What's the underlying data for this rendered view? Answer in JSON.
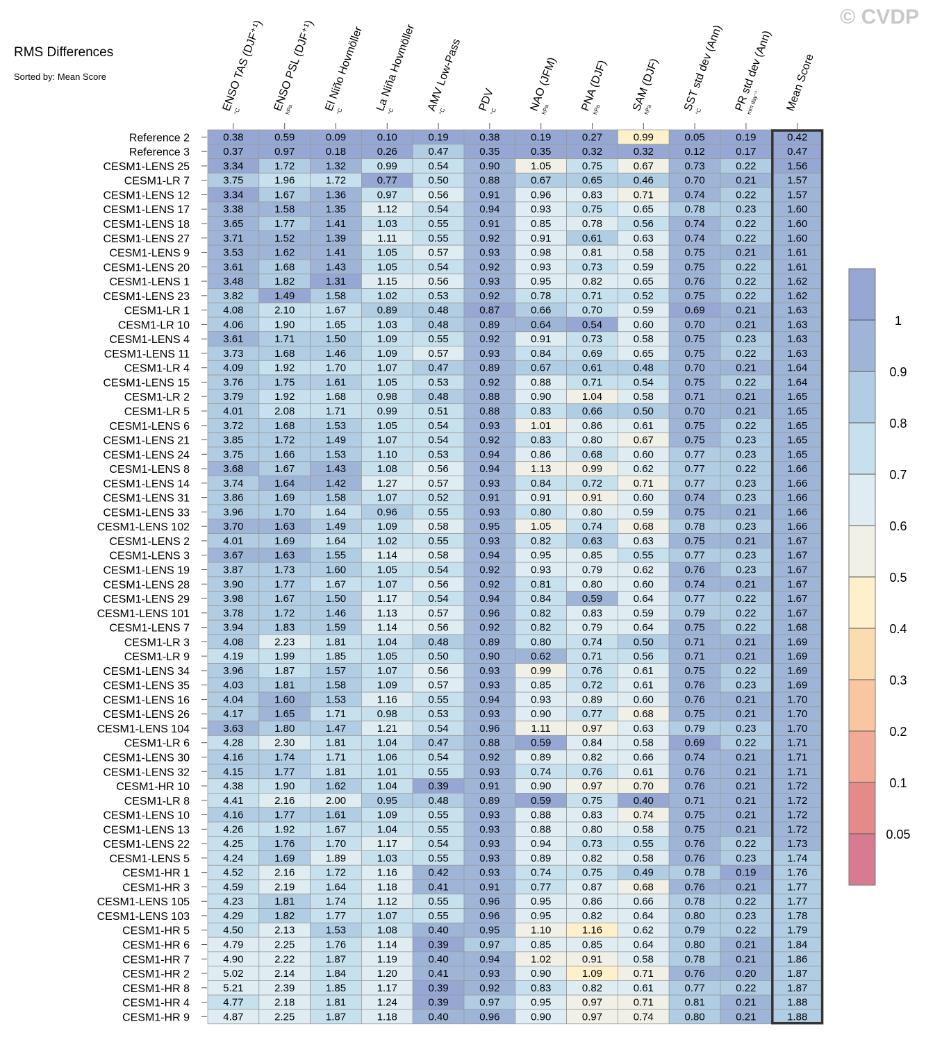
{
  "watermark": "© CVDP",
  "chart_data": {
    "type": "heatmap",
    "title": "RMS Differences",
    "subtitle": "Sorted by: Mean Score",
    "columns": [
      {
        "name": "ENSO TAS (DJF⁺¹)",
        "unit": "°C"
      },
      {
        "name": "ENSO PSL (DJF⁺¹)",
        "unit": "hPa"
      },
      {
        "name": "El Niño Hovmöller",
        "unit": "°C"
      },
      {
        "name": "La Niña Hovmöller",
        "unit": "°C"
      },
      {
        "name": "AMV Low-Pass",
        "unit": "°C"
      },
      {
        "name": "PDV",
        "unit": "°C"
      },
      {
        "name": "NAO (JFM)",
        "unit": "hPa"
      },
      {
        "name": "PNA (DJF)",
        "unit": "hPa"
      },
      {
        "name": "SAM (DJF)",
        "unit": "hPa"
      },
      {
        "name": "SST std dev (Ann)",
        "unit": "°C"
      },
      {
        "name": "PR std dev (Ann)",
        "unit": "mm day⁻¹"
      },
      {
        "name": "Mean Score",
        "unit": ""
      }
    ],
    "rows": [
      {
        "label": "Reference 2",
        "values": [
          0.38,
          0.59,
          0.09,
          0.1,
          0.19,
          0.38,
          0.19,
          0.27,
          0.99,
          0.05,
          0.19,
          0.42
        ]
      },
      {
        "label": "Reference 3",
        "values": [
          0.37,
          0.97,
          0.18,
          0.26,
          0.47,
          0.35,
          0.35,
          0.32,
          0.32,
          0.12,
          0.17,
          0.47
        ]
      },
      {
        "label": "CESM1-LENS 25",
        "values": [
          3.34,
          1.72,
          1.32,
          0.99,
          0.54,
          0.9,
          1.05,
          0.75,
          0.67,
          0.73,
          0.22,
          1.56
        ]
      },
      {
        "label": "CESM1-LR 7",
        "values": [
          3.75,
          1.96,
          1.72,
          0.77,
          0.5,
          0.88,
          0.67,
          0.65,
          0.46,
          0.7,
          0.21,
          1.57
        ]
      },
      {
        "label": "CESM1-LENS 12",
        "values": [
          3.34,
          1.67,
          1.36,
          0.97,
          0.56,
          0.91,
          0.96,
          0.83,
          0.71,
          0.74,
          0.22,
          1.57
        ]
      },
      {
        "label": "CESM1-LENS 17",
        "values": [
          3.38,
          1.58,
          1.35,
          1.12,
          0.54,
          0.94,
          0.93,
          0.75,
          0.65,
          0.78,
          0.23,
          1.6
        ]
      },
      {
        "label": "CESM1-LENS 18",
        "values": [
          3.65,
          1.77,
          1.41,
          1.03,
          0.55,
          0.91,
          0.85,
          0.78,
          0.56,
          0.74,
          0.22,
          1.6
        ]
      },
      {
        "label": "CESM1-LENS 27",
        "values": [
          3.71,
          1.52,
          1.39,
          1.11,
          0.55,
          0.92,
          0.91,
          0.61,
          0.63,
          0.74,
          0.22,
          1.6
        ]
      },
      {
        "label": "CESM1-LENS 9",
        "values": [
          3.53,
          1.62,
          1.41,
          1.05,
          0.57,
          0.93,
          0.98,
          0.81,
          0.58,
          0.75,
          0.21,
          1.61
        ]
      },
      {
        "label": "CESM1-LENS 20",
        "values": [
          3.61,
          1.68,
          1.43,
          1.05,
          0.54,
          0.92,
          0.93,
          0.73,
          0.59,
          0.75,
          0.22,
          1.61
        ]
      },
      {
        "label": "CESM1-LENS 1",
        "values": [
          3.48,
          1.82,
          1.31,
          1.15,
          0.56,
          0.93,
          0.95,
          0.82,
          0.65,
          0.76,
          0.22,
          1.62
        ]
      },
      {
        "label": "CESM1-LENS 23",
        "values": [
          3.82,
          1.49,
          1.58,
          1.02,
          0.53,
          0.92,
          0.78,
          0.71,
          0.52,
          0.75,
          0.22,
          1.62
        ]
      },
      {
        "label": "CESM1-LR 1",
        "values": [
          4.08,
          2.1,
          1.67,
          0.89,
          0.48,
          0.87,
          0.66,
          0.7,
          0.59,
          0.69,
          0.21,
          1.63
        ]
      },
      {
        "label": "CESM1-LR 10",
        "values": [
          4.06,
          1.9,
          1.65,
          1.03,
          0.48,
          0.89,
          0.64,
          0.54,
          0.6,
          0.7,
          0.21,
          1.63
        ]
      },
      {
        "label": "CESM1-LENS 4",
        "values": [
          3.61,
          1.71,
          1.5,
          1.09,
          0.55,
          0.92,
          0.91,
          0.73,
          0.58,
          0.75,
          0.23,
          1.63
        ]
      },
      {
        "label": "CESM1-LENS 11",
        "values": [
          3.73,
          1.68,
          1.46,
          1.09,
          0.57,
          0.93,
          0.84,
          0.69,
          0.65,
          0.75,
          0.22,
          1.63
        ]
      },
      {
        "label": "CESM1-LR 4",
        "values": [
          4.09,
          1.92,
          1.7,
          1.07,
          0.47,
          0.89,
          0.67,
          0.61,
          0.48,
          0.7,
          0.21,
          1.64
        ]
      },
      {
        "label": "CESM1-LENS 15",
        "values": [
          3.76,
          1.75,
          1.61,
          1.05,
          0.53,
          0.92,
          0.88,
          0.71,
          0.54,
          0.75,
          0.22,
          1.64
        ]
      },
      {
        "label": "CESM1-LR 2",
        "values": [
          3.79,
          1.92,
          1.68,
          0.98,
          0.48,
          0.88,
          0.9,
          1.04,
          0.58,
          0.71,
          0.21,
          1.65
        ]
      },
      {
        "label": "CESM1-LR 5",
        "values": [
          4.01,
          2.08,
          1.71,
          0.99,
          0.51,
          0.88,
          0.83,
          0.66,
          0.5,
          0.7,
          0.21,
          1.65
        ]
      },
      {
        "label": "CESM1-LENS 6",
        "values": [
          3.72,
          1.68,
          1.53,
          1.05,
          0.54,
          0.93,
          1.01,
          0.86,
          0.61,
          0.75,
          0.22,
          1.65
        ]
      },
      {
        "label": "CESM1-LENS 21",
        "values": [
          3.85,
          1.72,
          1.49,
          1.07,
          0.54,
          0.92,
          0.83,
          0.8,
          0.67,
          0.75,
          0.23,
          1.65
        ]
      },
      {
        "label": "CESM1-LENS 24",
        "values": [
          3.75,
          1.66,
          1.53,
          1.1,
          0.53,
          0.94,
          0.86,
          0.68,
          0.6,
          0.77,
          0.23,
          1.65
        ]
      },
      {
        "label": "CESM1-LENS 8",
        "values": [
          3.68,
          1.67,
          1.43,
          1.08,
          0.56,
          0.94,
          1.13,
          0.99,
          0.62,
          0.77,
          0.22,
          1.66
        ]
      },
      {
        "label": "CESM1-LENS 14",
        "values": [
          3.74,
          1.64,
          1.42,
          1.27,
          0.57,
          0.93,
          0.84,
          0.72,
          0.71,
          0.77,
          0.23,
          1.66
        ]
      },
      {
        "label": "CESM1-LENS 31",
        "values": [
          3.86,
          1.69,
          1.58,
          1.07,
          0.52,
          0.91,
          0.91,
          0.91,
          0.6,
          0.74,
          0.23,
          1.66
        ]
      },
      {
        "label": "CESM1-LENS 33",
        "values": [
          3.96,
          1.7,
          1.64,
          0.96,
          0.55,
          0.93,
          0.8,
          0.8,
          0.59,
          0.75,
          0.21,
          1.66
        ]
      },
      {
        "label": "CESM1-LENS 102",
        "values": [
          3.7,
          1.63,
          1.49,
          1.09,
          0.58,
          0.95,
          1.05,
          0.74,
          0.68,
          0.78,
          0.23,
          1.66
        ]
      },
      {
        "label": "CESM1-LENS 2",
        "values": [
          4.01,
          1.69,
          1.64,
          1.02,
          0.55,
          0.93,
          0.82,
          0.63,
          0.63,
          0.75,
          0.21,
          1.67
        ]
      },
      {
        "label": "CESM1-LENS 3",
        "values": [
          3.67,
          1.63,
          1.55,
          1.14,
          0.58,
          0.94,
          0.95,
          0.85,
          0.55,
          0.77,
          0.23,
          1.67
        ]
      },
      {
        "label": "CESM1-LENS 19",
        "values": [
          3.87,
          1.73,
          1.6,
          1.05,
          0.54,
          0.92,
          0.93,
          0.79,
          0.62,
          0.76,
          0.23,
          1.67
        ]
      },
      {
        "label": "CESM1-LENS 28",
        "values": [
          3.9,
          1.77,
          1.67,
          1.07,
          0.56,
          0.92,
          0.81,
          0.8,
          0.6,
          0.74,
          0.21,
          1.67
        ]
      },
      {
        "label": "CESM1-LENS 29",
        "values": [
          3.98,
          1.67,
          1.5,
          1.17,
          0.54,
          0.94,
          0.84,
          0.59,
          0.64,
          0.77,
          0.22,
          1.67
        ]
      },
      {
        "label": "CESM1-LENS 101",
        "values": [
          3.78,
          1.72,
          1.46,
          1.13,
          0.57,
          0.96,
          0.82,
          0.83,
          0.59,
          0.79,
          0.22,
          1.67
        ]
      },
      {
        "label": "CESM1-LENS 7",
        "values": [
          3.94,
          1.83,
          1.59,
          1.14,
          0.56,
          0.92,
          0.82,
          0.79,
          0.64,
          0.75,
          0.22,
          1.68
        ]
      },
      {
        "label": "CESM1-LR 3",
        "values": [
          4.08,
          2.23,
          1.81,
          1.04,
          0.48,
          0.89,
          0.8,
          0.74,
          0.5,
          0.71,
          0.21,
          1.69
        ]
      },
      {
        "label": "CESM1-LR 9",
        "values": [
          4.19,
          1.99,
          1.85,
          1.05,
          0.5,
          0.9,
          0.62,
          0.71,
          0.56,
          0.71,
          0.21,
          1.69
        ]
      },
      {
        "label": "CESM1-LENS 34",
        "values": [
          3.96,
          1.87,
          1.57,
          1.07,
          0.56,
          0.93,
          0.99,
          0.76,
          0.61,
          0.75,
          0.22,
          1.69
        ]
      },
      {
        "label": "CESM1-LENS 35",
        "values": [
          4.03,
          1.81,
          1.58,
          1.09,
          0.57,
          0.93,
          0.85,
          0.72,
          0.61,
          0.76,
          0.23,
          1.69
        ]
      },
      {
        "label": "CESM1-LENS 16",
        "values": [
          4.04,
          1.6,
          1.53,
          1.16,
          0.55,
          0.94,
          0.93,
          0.89,
          0.6,
          0.76,
          0.21,
          1.7
        ]
      },
      {
        "label": "CESM1-LENS 26",
        "values": [
          4.17,
          1.65,
          1.71,
          0.98,
          0.53,
          0.93,
          0.9,
          0.77,
          0.68,
          0.75,
          0.21,
          1.7
        ]
      },
      {
        "label": "CESM1-LENS 104",
        "values": [
          3.63,
          1.8,
          1.47,
          1.21,
          0.54,
          0.96,
          1.11,
          0.97,
          0.63,
          0.79,
          0.23,
          1.7
        ]
      },
      {
        "label": "CESM1-LR 6",
        "values": [
          4.28,
          2.3,
          1.81,
          1.04,
          0.47,
          0.88,
          0.59,
          0.84,
          0.58,
          0.69,
          0.22,
          1.71
        ]
      },
      {
        "label": "CESM1-LENS 30",
        "values": [
          4.16,
          1.74,
          1.71,
          1.06,
          0.54,
          0.92,
          0.89,
          0.82,
          0.66,
          0.74,
          0.21,
          1.71
        ]
      },
      {
        "label": "CESM1-LENS 32",
        "values": [
          4.15,
          1.77,
          1.81,
          1.01,
          0.55,
          0.93,
          0.74,
          0.76,
          0.61,
          0.76,
          0.21,
          1.71
        ]
      },
      {
        "label": "CESM1-HR 10",
        "values": [
          4.38,
          1.9,
          1.62,
          1.04,
          0.39,
          0.91,
          0.9,
          0.97,
          0.7,
          0.76,
          0.21,
          1.72
        ]
      },
      {
        "label": "CESM1-LR 8",
        "values": [
          4.41,
          2.16,
          2.0,
          0.95,
          0.48,
          0.89,
          0.59,
          0.75,
          0.4,
          0.71,
          0.21,
          1.72
        ]
      },
      {
        "label": "CESM1-LENS 10",
        "values": [
          4.16,
          1.77,
          1.61,
          1.09,
          0.55,
          0.93,
          0.88,
          0.83,
          0.74,
          0.75,
          0.21,
          1.72
        ]
      },
      {
        "label": "CESM1-LENS 13",
        "values": [
          4.26,
          1.92,
          1.67,
          1.04,
          0.55,
          0.93,
          0.88,
          0.8,
          0.58,
          0.75,
          0.21,
          1.72
        ]
      },
      {
        "label": "CESM1-LENS 22",
        "values": [
          4.25,
          1.76,
          1.7,
          1.17,
          0.54,
          0.93,
          0.94,
          0.73,
          0.55,
          0.76,
          0.22,
          1.73
        ]
      },
      {
        "label": "CESM1-LENS 5",
        "values": [
          4.24,
          1.69,
          1.89,
          1.03,
          0.55,
          0.93,
          0.89,
          0.82,
          0.58,
          0.76,
          0.23,
          1.74
        ]
      },
      {
        "label": "CESM1-HR 1",
        "values": [
          4.52,
          2.16,
          1.72,
          1.16,
          0.42,
          0.93,
          0.74,
          0.75,
          0.49,
          0.78,
          0.19,
          1.76
        ]
      },
      {
        "label": "CESM1-HR 3",
        "values": [
          4.59,
          2.19,
          1.64,
          1.18,
          0.41,
          0.91,
          0.77,
          0.87,
          0.68,
          0.76,
          0.21,
          1.77
        ]
      },
      {
        "label": "CESM1-LENS 105",
        "values": [
          4.23,
          1.81,
          1.74,
          1.12,
          0.55,
          0.96,
          0.95,
          0.86,
          0.66,
          0.78,
          0.22,
          1.77
        ]
      },
      {
        "label": "CESM1-LENS 103",
        "values": [
          4.29,
          1.82,
          1.77,
          1.07,
          0.55,
          0.96,
          0.95,
          0.82,
          0.64,
          0.8,
          0.23,
          1.78
        ]
      },
      {
        "label": "CESM1-HR 5",
        "values": [
          4.5,
          2.13,
          1.53,
          1.08,
          0.4,
          0.95,
          1.1,
          1.16,
          0.62,
          0.79,
          0.22,
          1.79
        ]
      },
      {
        "label": "CESM1-HR 6",
        "values": [
          4.79,
          2.25,
          1.76,
          1.14,
          0.39,
          0.97,
          0.85,
          0.85,
          0.64,
          0.8,
          0.21,
          1.84
        ]
      },
      {
        "label": "CESM1-HR 7",
        "values": [
          4.9,
          2.22,
          1.87,
          1.19,
          0.4,
          0.94,
          1.02,
          0.91,
          0.58,
          0.78,
          0.21,
          1.86
        ]
      },
      {
        "label": "CESM1-HR 2",
        "values": [
          5.02,
          2.14,
          1.84,
          1.2,
          0.41,
          0.93,
          0.9,
          1.09,
          0.71,
          0.76,
          0.2,
          1.87
        ]
      },
      {
        "label": "CESM1-HR 8",
        "values": [
          5.21,
          2.39,
          1.85,
          1.17,
          0.39,
          0.92,
          0.83,
          0.82,
          0.61,
          0.77,
          0.22,
          1.87
        ]
      },
      {
        "label": "CESM1-HR 4",
        "values": [
          4.77,
          2.18,
          1.81,
          1.24,
          0.39,
          0.97,
          0.95,
          0.97,
          0.71,
          0.81,
          0.21,
          1.88
        ]
      },
      {
        "label": "CESM1-HR 9",
        "values": [
          4.87,
          2.25,
          1.87,
          1.18,
          0.4,
          0.96,
          0.9,
          0.97,
          0.74,
          0.8,
          0.21,
          1.88
        ]
      }
    ],
    "colorbar": {
      "tick_labels": [
        "1",
        "0.9",
        "0.8",
        "0.7",
        "0.6",
        "0.5",
        "0.4",
        "0.3",
        "0.2",
        "0.1",
        "0.05"
      ],
      "levels": [
        0.05,
        0.1,
        0.2,
        0.3,
        0.4,
        0.5,
        0.6,
        0.7,
        0.8,
        0.9,
        1
      ],
      "colors": [
        "#d97b90",
        "#e48a88",
        "#f0aa96",
        "#f8c6a1",
        "#fbdcb0",
        "#fdf0cb",
        "#f0f0e7",
        "#dfedf3",
        "#c6e0ed",
        "#b0cde3",
        "#9fb5d8",
        "#95a7d2"
      ]
    },
    "highlight_column": "Mean Score"
  }
}
